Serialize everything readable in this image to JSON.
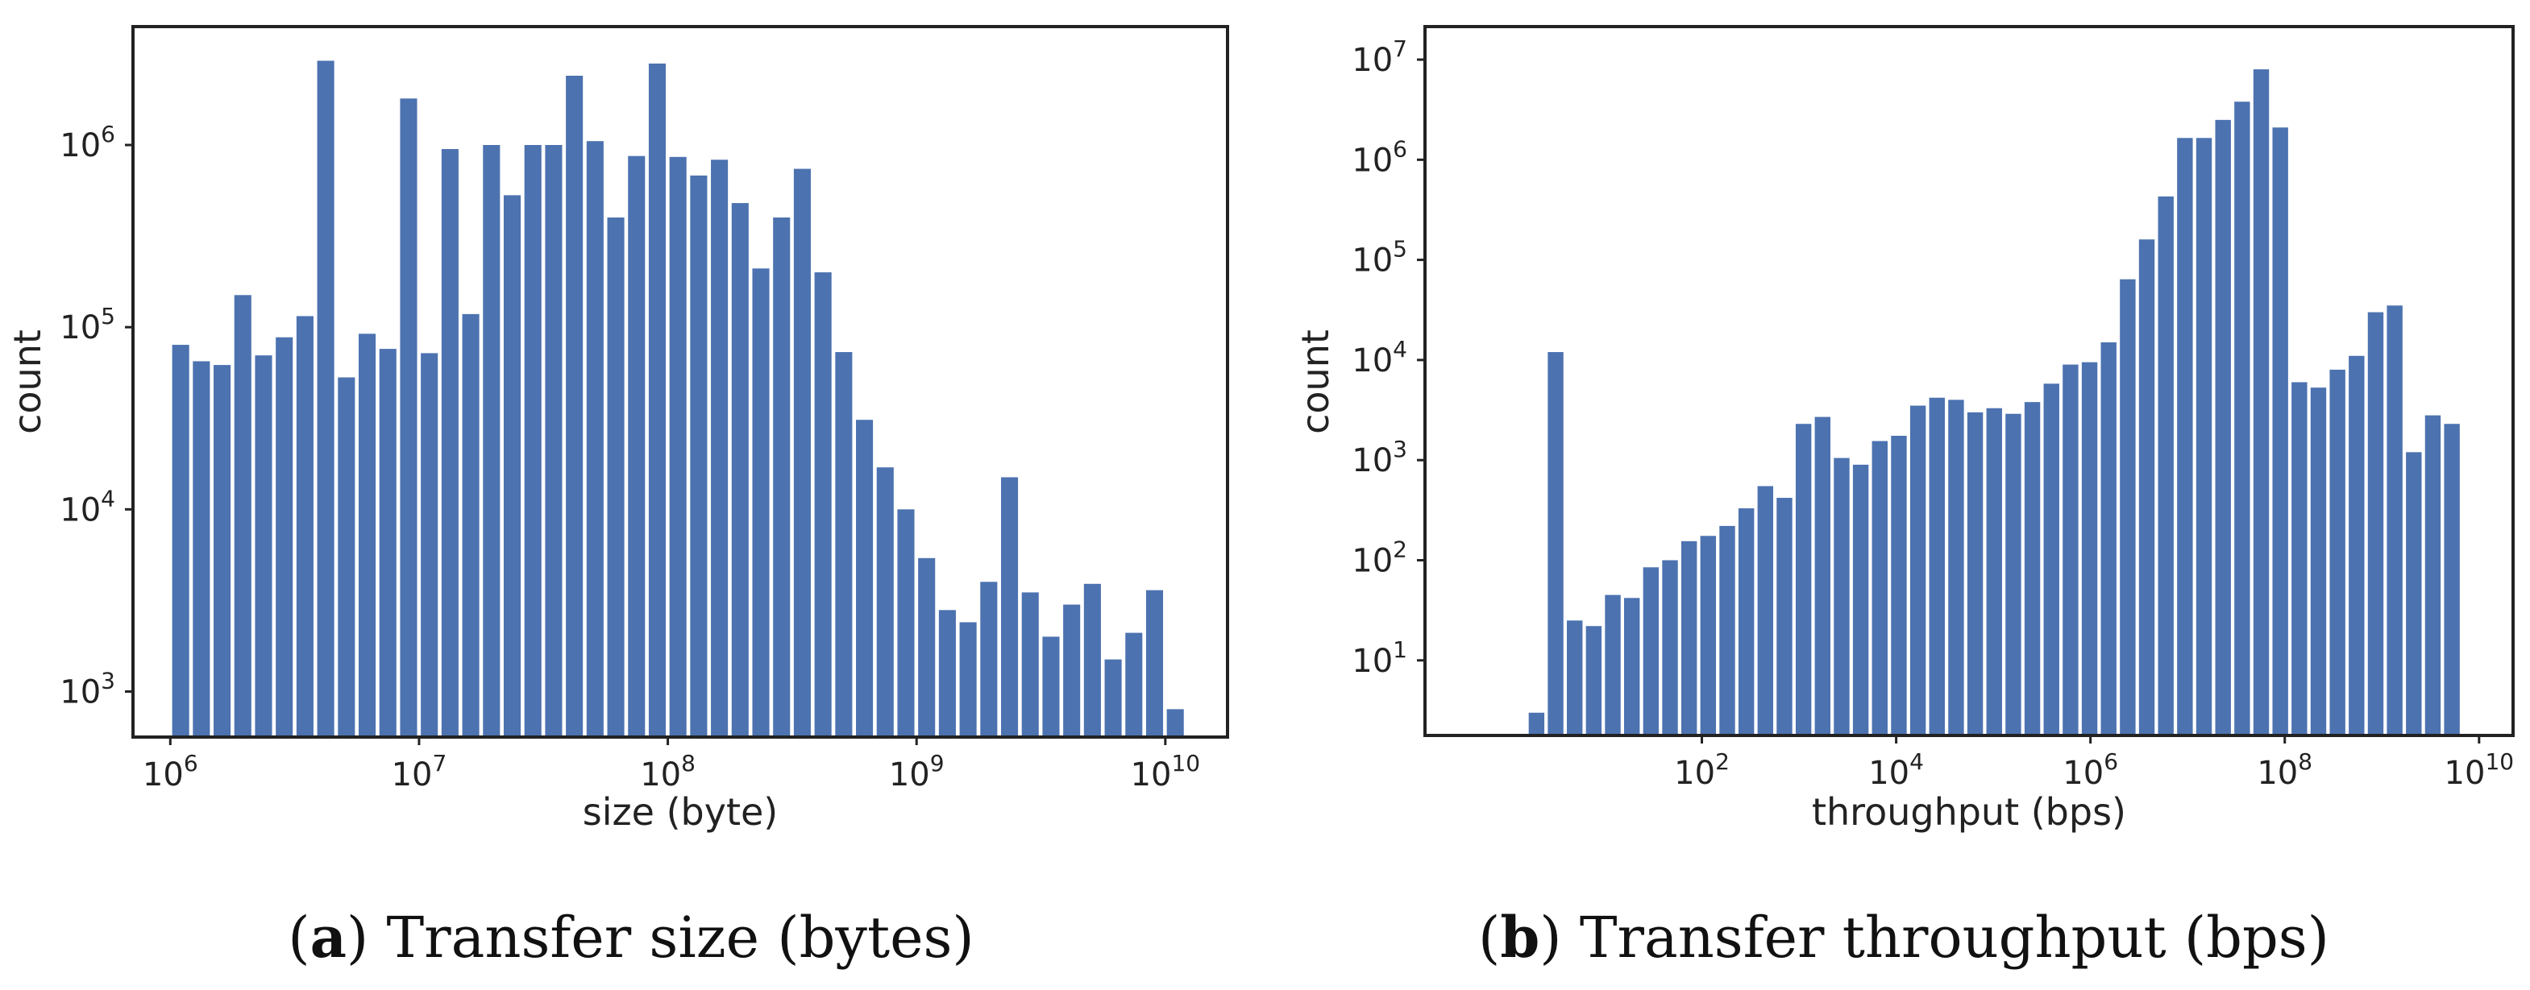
{
  "figure": {
    "panels": [
      {
        "caption_letter": "a",
        "caption_text": "Transfer size (bytes)"
      },
      {
        "caption_letter": "b",
        "caption_text": "Transfer throughput (bps)"
      }
    ]
  },
  "chart_data": [
    {
      "type": "bar",
      "title": "",
      "xlabel": "size (byte)",
      "ylabel": "count",
      "xscale": "log",
      "yscale": "log",
      "xlim_log10": [
        5.85,
        10.25
      ],
      "ylim_log10": [
        2.75,
        6.65
      ],
      "grid": false,
      "legend": "none",
      "bar_color": "#4c72b0",
      "x_ticks": [
        {
          "base": "10",
          "exp": "6",
          "log10": 6
        },
        {
          "base": "10",
          "exp": "7",
          "log10": 7
        },
        {
          "base": "10",
          "exp": "8",
          "log10": 8
        },
        {
          "base": "10",
          "exp": "9",
          "log10": 9
        },
        {
          "base": "10",
          "exp": "10",
          "log10": 10
        }
      ],
      "y_ticks": [
        {
          "base": "10",
          "exp": "3",
          "log10": 3
        },
        {
          "base": "10",
          "exp": "4",
          "log10": 4
        },
        {
          "base": "10",
          "exp": "5",
          "log10": 5
        },
        {
          "base": "10",
          "exp": "6",
          "log10": 6
        }
      ],
      "bin_log10_start": 6.0,
      "bin_log10_width": 0.0833,
      "values": [
        80000,
        65000,
        62000,
        150000,
        70000,
        88000,
        115000,
        2900000,
        53000,
        92000,
        76000,
        1800000,
        72000,
        950000,
        118000,
        1000000,
        530000,
        1000000,
        1000000,
        2400000,
        1050000,
        400000,
        870000,
        2800000,
        860000,
        680000,
        830000,
        480000,
        210000,
        400000,
        740000,
        200000,
        73000,
        31000,
        17000,
        10000,
        5400,
        2800,
        2400,
        4000,
        15000,
        3500,
        2000,
        3000,
        3900,
        1500,
        2100,
        3600,
        800
      ]
    },
    {
      "type": "bar",
      "title": "",
      "xlabel": "throughput (bps)",
      "ylabel": "count",
      "xscale": "log",
      "yscale": "log",
      "xlim_log10": [
        -0.85,
        10.35
      ],
      "ylim_log10": [
        0.25,
        7.33
      ],
      "grid": false,
      "legend": "none",
      "bar_color": "#4c72b0",
      "x_ticks": [
        {
          "base": "10",
          "exp": "2",
          "log10": 2
        },
        {
          "base": "10",
          "exp": "4",
          "log10": 4
        },
        {
          "base": "10",
          "exp": "6",
          "log10": 6
        },
        {
          "base": "10",
          "exp": "8",
          "log10": 8
        },
        {
          "base": "10",
          "exp": "10",
          "log10": 10
        }
      ],
      "y_ticks": [
        {
          "base": "10",
          "exp": "1",
          "log10": 1
        },
        {
          "base": "10",
          "exp": "2",
          "log10": 2
        },
        {
          "base": "10",
          "exp": "3",
          "log10": 3
        },
        {
          "base": "10",
          "exp": "4",
          "log10": 4
        },
        {
          "base": "10",
          "exp": "5",
          "log10": 5
        },
        {
          "base": "10",
          "exp": "6",
          "log10": 6
        },
        {
          "base": "10",
          "exp": "7",
          "log10": 7
        }
      ],
      "bin_log10_start": 0.2,
      "bin_log10_width": 0.1963,
      "values": [
        3,
        12000,
        25,
        22,
        45,
        42,
        85,
        100,
        155,
        175,
        220,
        330,
        550,
        420,
        2300,
        2700,
        1050,
        900,
        1550,
        1750,
        3500,
        4200,
        4000,
        3000,
        3300,
        2900,
        3800,
        5800,
        9000,
        9500,
        15000,
        64000,
        160000,
        430000,
        1650000,
        1650000,
        2500000,
        3800000,
        8000000,
        2100000,
        6000,
        5300,
        8000,
        11000,
        30000,
        35000,
        1200,
        2800,
        2300
      ]
    }
  ]
}
